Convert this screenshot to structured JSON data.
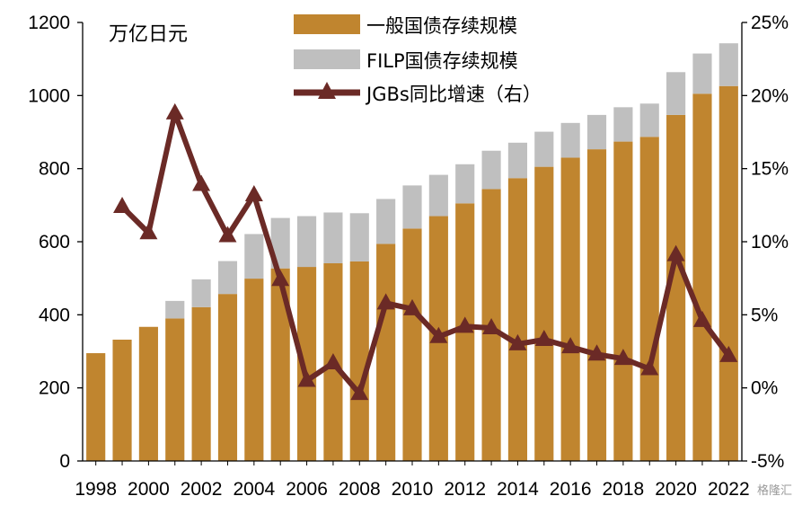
{
  "chart_data": {
    "type": "bar",
    "unit_label": "万亿日元",
    "categories": [
      "1998",
      "1999",
      "2000",
      "2001",
      "2002",
      "2003",
      "2004",
      "2005",
      "2006",
      "2007",
      "2008",
      "2009",
      "2010",
      "2011",
      "2012",
      "2013",
      "2014",
      "2015",
      "2016",
      "2017",
      "2018",
      "2019",
      "2020",
      "2021",
      "2022"
    ],
    "x_tick_labels": [
      "1998",
      "2000",
      "2002",
      "2004",
      "2006",
      "2008",
      "2010",
      "2012",
      "2014",
      "2016",
      "2018",
      "2020",
      "2022"
    ],
    "series": [
      {
        "name": "一般国债存续规模",
        "kind": "stacked-bar",
        "axis": "left",
        "color": "#C0852F",
        "values": [
          295,
          332,
          367,
          390,
          421,
          457,
          499,
          527,
          531,
          541,
          546,
          594,
          636,
          670,
          705,
          744,
          774,
          805,
          830,
          853,
          874,
          887,
          947,
          1005,
          1026
        ]
      },
      {
        "name": "FILP国债存续规模",
        "kind": "stacked-bar",
        "axis": "left",
        "color": "#BFBFBF",
        "values": [
          0,
          0,
          0,
          48,
          76,
          90,
          122,
          138,
          139,
          139,
          132,
          123,
          118,
          113,
          107,
          105,
          97,
          96,
          95,
          94,
          94,
          91,
          117,
          110,
          117
        ]
      },
      {
        "name": "JGBs同比增速（右）",
        "kind": "line",
        "axis": "right",
        "color": "#6B2A26",
        "values": [
          null,
          12.4,
          10.6,
          18.8,
          13.9,
          10.4,
          13.2,
          7.4,
          0.5,
          1.7,
          -0.4,
          5.8,
          5.4,
          3.5,
          4.2,
          4.1,
          3.0,
          3.3,
          2.8,
          2.3,
          2.0,
          1.3,
          9.1,
          4.6,
          2.2
        ]
      }
    ],
    "y_left": {
      "min": 0,
      "max": 1200,
      "ticks": [
        0,
        200,
        400,
        600,
        800,
        1000,
        1200
      ]
    },
    "y_right": {
      "min": -5,
      "max": 25,
      "ticks": [
        -5,
        0,
        5,
        10,
        15,
        20,
        25
      ],
      "tick_labels": [
        "-5%",
        "0%",
        "5%",
        "10%",
        "15%",
        "20%",
        "25%"
      ]
    },
    "legend_position": "top-center",
    "grid": false
  },
  "watermark": "格隆汇"
}
